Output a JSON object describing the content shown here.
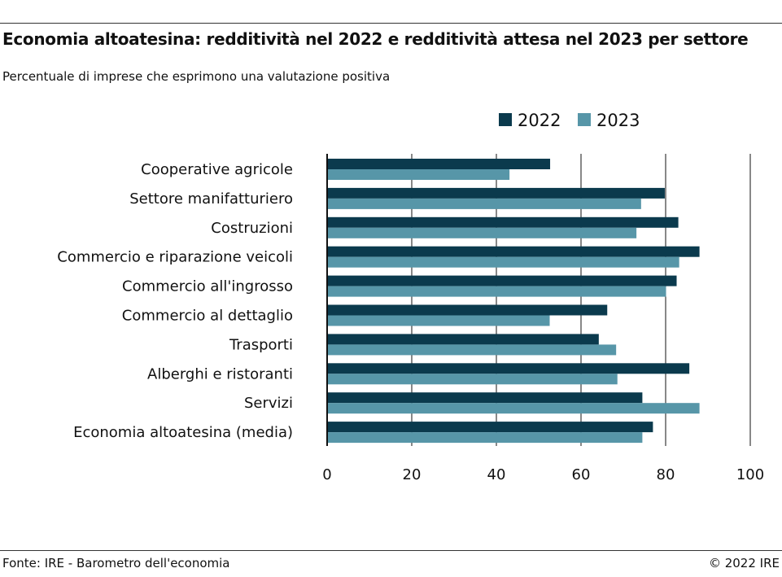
{
  "chart_data": {
    "type": "bar",
    "orientation": "horizontal",
    "title": "Economia altoatesina: redditività nel 2022 e redditività attesa nel 2023 per settore",
    "subtitle": "Percentuale di imprese che esprimono una valutazione positiva",
    "categories": [
      "Cooperative agricole",
      "Settore manifatturiero",
      "Costruzioni",
      "Commercio e riparazione veicoli",
      "Commercio all'ingrosso",
      "Commercio al dettaglio",
      "Trasporti",
      "Alberghi e ristoranti",
      "Servizi",
      "Economia altoatesina (media)"
    ],
    "series": [
      {
        "name": "2022",
        "color": "#0b3a4d",
        "values": [
          52.7,
          79.8,
          83,
          88,
          82.6,
          66.2,
          64.2,
          85.6,
          74.5,
          77
        ]
      },
      {
        "name": "2023",
        "color": "#5796a8",
        "values": [
          43.1,
          74.2,
          73.1,
          83.2,
          80.1,
          52.6,
          68.3,
          68.6,
          88,
          74.5
        ]
      }
    ],
    "xlim": [
      0,
      100
    ],
    "xticks": [
      "0",
      "20",
      "40",
      "60",
      "80",
      "100"
    ],
    "grid": true,
    "legend": "top"
  },
  "footer": {
    "source": "Fonte: IRE - Barometro dell'economia",
    "copyright": "© 2022 IRE"
  }
}
